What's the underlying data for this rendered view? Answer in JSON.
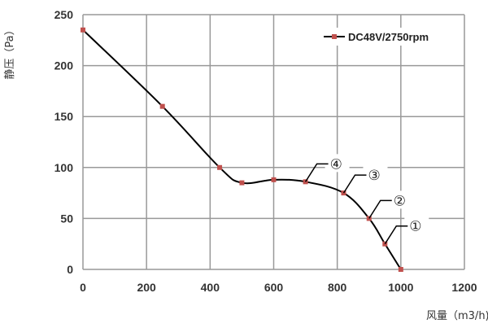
{
  "chart_data": {
    "type": "line",
    "title": "",
    "xlabel": "风量（m3/h)",
    "ylabel": "静压（Pa）",
    "xlim": [
      0,
      1200
    ],
    "ylim": [
      0,
      250
    ],
    "xticks": [
      0,
      200,
      400,
      600,
      800,
      1000,
      1200
    ],
    "yticks": [
      0,
      50,
      100,
      150,
      200,
      250
    ],
    "grid": true,
    "legend_position": "top-right",
    "series": [
      {
        "name": "DC48V/2750rpm",
        "color": "#000000",
        "marker_color": "#c0504d",
        "x": [
          0,
          250,
          430,
          500,
          600,
          700,
          820,
          900,
          950,
          1000
        ],
        "y": [
          235,
          160,
          100,
          85,
          88,
          86,
          75,
          50,
          25,
          0
        ]
      }
    ],
    "annotations": [
      {
        "text": "④",
        "x": 700,
        "y": 86
      },
      {
        "text": "③",
        "x": 820,
        "y": 75
      },
      {
        "text": "②",
        "x": 900,
        "y": 50
      },
      {
        "text": "①",
        "x": 950,
        "y": 25
      }
    ]
  }
}
